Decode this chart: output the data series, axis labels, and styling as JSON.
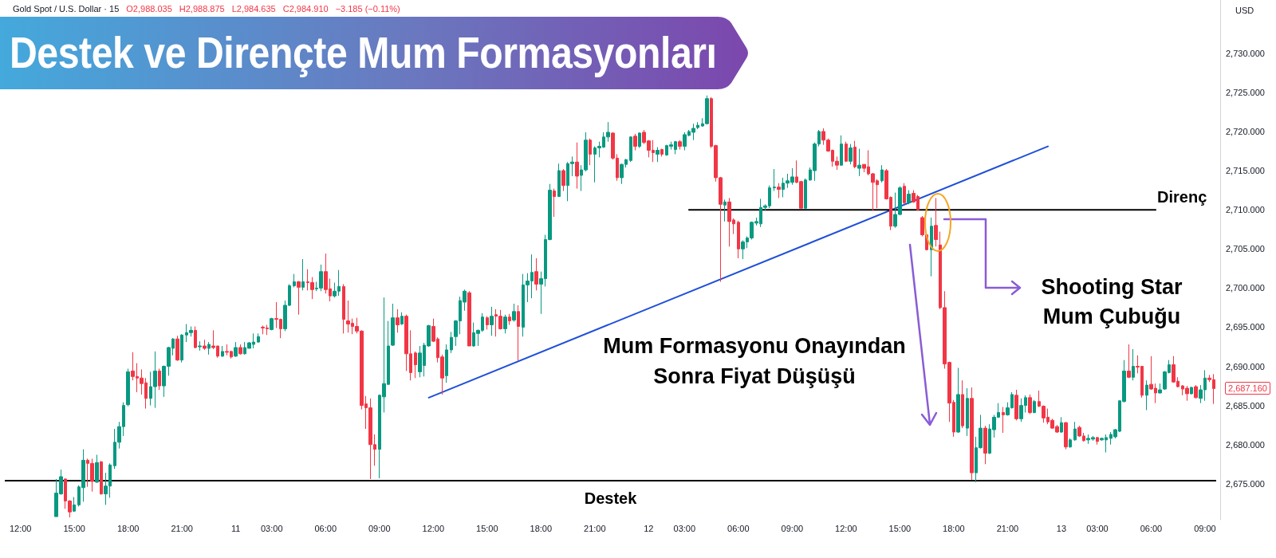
{
  "chart_data": {
    "type": "candlestick",
    "title": "Destek ve Dirençte Mum Formasyonları",
    "subtitle": "Gold Spot / U.S. Dollar · 15",
    "ylabel": "USD",
    "categories": [
      null,
      null,
      null,
      "12:00",
      null,
      null,
      null,
      null,
      null,
      null,
      null,
      null,
      null,
      null,
      null,
      "15:00",
      null,
      null,
      null,
      null,
      null,
      null,
      null,
      null,
      null,
      null,
      null,
      "18:00",
      null,
      null,
      null,
      null,
      null,
      null,
      null,
      null,
      null,
      null,
      null,
      "21:00",
      null,
      null,
      null,
      null,
      null,
      null,
      null,
      null,
      null,
      null,
      null,
      "11",
      null,
      null,
      null,
      null,
      null,
      null,
      null,
      "03:00",
      null,
      null,
      null,
      null,
      null,
      null,
      null,
      null,
      null,
      null,
      null,
      "06:00",
      null,
      null,
      null,
      null,
      null,
      null,
      null,
      null,
      null,
      null,
      null,
      "09:00",
      null,
      null,
      null,
      null,
      null,
      null,
      null,
      null,
      null,
      null,
      null,
      "12:00",
      null,
      null,
      null,
      null,
      null,
      null,
      null,
      null,
      null,
      null,
      null,
      "15:00",
      null,
      null,
      null,
      null,
      null,
      null,
      null,
      null,
      null,
      null,
      null,
      "18:00",
      null,
      null,
      null,
      null,
      null,
      null,
      null,
      null,
      null,
      null,
      null,
      "21:00",
      null,
      null,
      null,
      null,
      null,
      null,
      null,
      null,
      null,
      null,
      null,
      "12",
      null,
      null,
      null,
      null,
      null,
      null,
      null,
      "03:00",
      null,
      null,
      null,
      null,
      null,
      null,
      null,
      null,
      null,
      null,
      null,
      "06:00",
      null,
      null,
      null,
      null,
      null,
      null,
      null,
      null,
      null,
      null,
      null,
      "09:00",
      null,
      null,
      null,
      null,
      null,
      null,
      null,
      null,
      null,
      null,
      null,
      "12:00",
      null,
      null,
      null,
      null,
      null,
      null,
      null,
      null,
      null,
      null,
      null,
      "15:00",
      null,
      null,
      null,
      null,
      null,
      null,
      null,
      null,
      null,
      null,
      null,
      "18:00",
      null,
      null,
      null,
      null,
      null,
      null,
      null,
      null,
      null,
      null,
      null,
      "21:00",
      null,
      null,
      null,
      null,
      null,
      null,
      null,
      null,
      null,
      null,
      null,
      "13",
      null,
      null,
      null,
      null,
      null,
      null,
      null,
      "03:00",
      null,
      null,
      null,
      null,
      null,
      null,
      null,
      null,
      null,
      null,
      null,
      "06:00",
      null,
      null,
      null,
      null,
      null,
      null,
      null,
      null,
      null,
      null,
      null,
      "09:00",
      null,
      null
    ],
    "ohlc": [
      null,
      null,
      null,
      null,
      null,
      null,
      null,
      null,
      null,
      null,
      null,
      [
        2670.8,
        2675.6,
        2670.8,
        2673.8
      ],
      [
        2673.7,
        2676.8,
        2673.6,
        2675.9
      ],
      [
        2675.6,
        2675.7,
        2671.8,
        2672.8
      ],
      [
        2672.8,
        2672.9,
        2670.7,
        2671.4
      ],
      [
        2671.5,
        2673.3,
        2671.4,
        2672.3
      ],
      [
        2672.3,
        2674.8,
        2672.1,
        2674.6
      ],
      [
        2674.5,
        2679.4,
        2672.7,
        2678.0
      ],
      [
        2678.0,
        2678.2,
        2674.6,
        2677.6
      ],
      [
        2677.6,
        2678.2,
        2674.0,
        2675.3
      ],
      [
        2675.2,
        2678.7,
        2675.1,
        2677.7
      ],
      [
        2677.8,
        2677.9,
        2673.6,
        2673.7
      ],
      [
        2673.7,
        2676.4,
        2672.3,
        2674.7
      ],
      [
        2674.7,
        2677.6,
        2673.2,
        2677.4
      ],
      [
        2677.3,
        2682.0,
        2676.9,
        2680.3
      ],
      [
        2680.3,
        2682.9,
        2679.5,
        2682.3
      ],
      [
        2682.3,
        2685.4,
        2681.1,
        2685.0
      ],
      [
        2685.1,
        2689.7,
        2684.9,
        2689.3
      ],
      [
        2689.4,
        2691.8,
        2688.2,
        2688.7
      ],
      [
        2688.7,
        2690.4,
        2686.7,
        2688.5
      ],
      [
        2688.5,
        2689.6,
        2686.4,
        2687.8
      ],
      [
        2687.9,
        2688.5,
        2684.6,
        2685.9
      ],
      [
        2685.9,
        2689.3,
        2685.0,
        2687.4
      ],
      [
        2687.4,
        2691.9,
        2684.7,
        2689.4
      ],
      [
        2689.4,
        2689.7,
        2687.0,
        2687.5
      ],
      [
        2687.5,
        2690.1,
        2686.1,
        2690.0
      ],
      [
        2690.0,
        2692.5,
        2688.8,
        2692.4
      ],
      [
        2692.3,
        2693.6,
        2691.4,
        2693.5
      ],
      [
        2693.5,
        2693.9,
        2690.7,
        2690.8
      ],
      [
        2690.8,
        2694.1,
        2690.5,
        2694.0
      ],
      [
        2694.0,
        2695.4,
        2693.1,
        2694.3
      ],
      [
        2694.3,
        2695.1,
        2693.8,
        2694.6
      ],
      [
        2694.6,
        2695.1,
        2692.3,
        2692.4
      ],
      [
        2692.5,
        2693.2,
        2692.0,
        2692.6
      ],
      [
        2692.6,
        2693.4,
        2692.1,
        2692.3
      ],
      [
        2692.3,
        2693.1,
        2691.5,
        2692.8
      ],
      [
        2692.6,
        2694.6,
        2692.2,
        2692.4
      ],
      [
        2692.6,
        2692.6,
        2691.1,
        2691.3
      ],
      [
        2691.3,
        2692.6,
        2691.2,
        2691.9
      ],
      [
        2691.9,
        2692.8,
        2691.4,
        2691.8
      ],
      [
        2691.9,
        2692.0,
        2691.0,
        2691.2
      ],
      [
        2691.3,
        2693.1,
        2691.2,
        2692.4
      ],
      [
        2692.4,
        2692.8,
        2691.5,
        2691.6
      ],
      [
        2691.6,
        2693.1,
        2691.5,
        2692.4
      ],
      [
        2692.3,
        2693.1,
        2692.3,
        2693.0
      ],
      [
        2692.8,
        2694.2,
        2692.3,
        2693.1
      ],
      [
        2693.1,
        2694.2,
        2693.0,
        2693.8
      ],
      [
        2695.0,
        2695.2,
        2694.1,
        2694.9
      ],
      [
        2694.9,
        2695.3,
        2694.0,
        2694.8
      ],
      [
        2694.7,
        2696.2,
        2694.6,
        2696.1
      ],
      [
        2696.1,
        2698.2,
        2694.9,
        2696.0
      ],
      [
        2696.0,
        2696.1,
        2693.6,
        2694.8
      ],
      [
        2694.8,
        2698.4,
        2694.5,
        2697.8
      ],
      [
        2697.8,
        2700.5,
        2697.7,
        2700.3
      ],
      [
        2700.3,
        2701.8,
        2700.1,
        2700.8
      ],
      [
        2700.8,
        2700.9,
        2696.6,
        2700.1
      ],
      [
        2700.1,
        2703.7,
        2699.7,
        2700.8
      ],
      [
        2700.8,
        2702.4,
        2699.7,
        2700.7
      ],
      [
        2700.7,
        2701.4,
        2698.6,
        2699.8
      ],
      [
        2699.9,
        2700.8,
        2699.6,
        2700.0
      ],
      [
        2700.0,
        2703.0,
        2699.6,
        2702.1
      ],
      [
        2702.1,
        2704.4,
        2699.3,
        2699.8
      ],
      [
        2699.9,
        2701.2,
        2698.3,
        2699.0
      ],
      [
        2699.0,
        2700.7,
        2698.8,
        2699.6
      ],
      [
        2699.6,
        2702.3,
        2699.0,
        2700.2
      ],
      [
        2700.2,
        2700.5,
        2694.2,
        2696.0
      ],
      [
        2695.8,
        2698.4,
        2694.3,
        2695.4
      ],
      [
        2695.5,
        2696.1,
        2694.1,
        2695.1
      ],
      [
        2695.1,
        2696.2,
        2694.2,
        2694.5
      ],
      [
        2694.5,
        2694.6,
        2684.5,
        2685.0
      ],
      [
        2685.2,
        2686.2,
        2682.0,
        2684.7
      ],
      [
        2684.7,
        2685.9,
        2675.6,
        2680.0
      ],
      [
        2680.0,
        2681.3,
        2677.3,
        2679.4
      ],
      [
        2679.4,
        2686.4,
        2675.7,
        2686.3
      ],
      [
        2686.1,
        2698.8,
        2684.1,
        2687.8
      ],
      [
        2687.7,
        2695.8,
        2687.6,
        2692.6
      ],
      [
        2692.7,
        2698.0,
        2692.6,
        2696.2
      ],
      [
        2696.2,
        2697.3,
        2694.3,
        2695.3
      ],
      [
        2695.4,
        2696.9,
        2695.3,
        2696.4
      ],
      [
        2696.4,
        2696.6,
        2689.4,
        2691.6
      ],
      [
        2691.6,
        2694.6,
        2688.2,
        2689.2
      ],
      [
        2691.7,
        2691.9,
        2688.5,
        2690.2
      ],
      [
        2689.3,
        2692.6,
        2688.6,
        2691.7
      ],
      [
        2690.1,
        2693.0,
        2688.7,
        2692.7
      ],
      [
        2692.6,
        2695.3,
        2692.5,
        2695.2
      ],
      [
        2695.1,
        2696.1,
        2693.1,
        2693.2
      ],
      [
        2693.5,
        2693.7,
        2690.5,
        2691.1
      ],
      [
        2691.2,
        2691.5,
        2686.4,
        2688.5
      ],
      [
        2688.8,
        2692.8,
        2687.9,
        2692.1
      ],
      [
        2692.1,
        2694.4,
        2691.7,
        2693.7
      ],
      [
        2693.8,
        2695.9,
        2692.6,
        2695.8
      ],
      [
        2695.8,
        2698.9,
        2694.1,
        2698.4
      ],
      [
        2698.2,
        2699.8,
        2697.1,
        2699.6
      ],
      [
        2699.4,
        2699.6,
        2692.6,
        2692.6
      ],
      [
        2692.6,
        2695.6,
        2692.5,
        2694.3
      ],
      [
        2694.2,
        2694.7,
        2692.6,
        2694.6
      ],
      [
        2694.6,
        2696.8,
        2694.4,
        2696.3
      ],
      [
        2696.2,
        2696.4,
        2694.7,
        2695.3
      ],
      [
        2695.3,
        2697.6,
        2693.9,
        2696.4
      ],
      [
        2696.6,
        2697.3,
        2693.8,
        2696.4
      ],
      [
        2696.4,
        2697.2,
        2694.7,
        2694.8
      ],
      [
        2694.8,
        2696.6,
        2694.2,
        2696.3
      ],
      [
        2696.3,
        2696.7,
        2695.3,
        2695.8
      ],
      [
        2695.9,
        2698.0,
        2695.7,
        2697.0
      ],
      [
        2697.0,
        2697.8,
        2690.7,
        2695.1
      ],
      [
        2695.0,
        2701.8,
        2693.8,
        2700.4
      ],
      [
        2700.4,
        2701.9,
        2698.2,
        2700.9
      ],
      [
        2700.9,
        2704.3,
        2698.7,
        2702.0
      ],
      [
        2702.1,
        2703.8,
        2699.7,
        2700.5
      ],
      [
        2700.5,
        2702.1,
        2696.7,
        2701.2
      ],
      [
        2701.2,
        2706.8,
        2700.2,
        2706.2
      ],
      [
        2706.2,
        2713.3,
        2706.1,
        2712.5
      ],
      [
        2712.4,
        2712.7,
        2709.1,
        2711.7
      ],
      [
        2711.7,
        2715.9,
        2711.7,
        2715.0
      ],
      [
        2715.0,
        2715.2,
        2712.4,
        2713.1
      ],
      [
        2713.1,
        2716.1,
        2711.1,
        2715.9
      ],
      [
        2715.9,
        2716.8,
        2714.3,
        2716.1
      ],
      [
        2716.1,
        2718.6,
        2712.7,
        2714.3
      ],
      [
        2714.4,
        2715.7,
        2712.4,
        2715.1
      ],
      [
        2715.1,
        2719.9,
        2714.9,
        2718.9
      ],
      [
        2718.9,
        2719.1,
        2715.7,
        2717.1
      ],
      [
        2717.1,
        2718.1,
        2713.5,
        2717.9
      ],
      [
        2717.9,
        2718.7,
        2716.7,
        2718.1
      ],
      [
        2718.0,
        2719.9,
        2717.9,
        2719.3
      ],
      [
        2719.3,
        2721.2,
        2718.7,
        2719.9
      ],
      [
        2719.8,
        2719.9,
        2716.4,
        2716.6
      ],
      [
        2716.6,
        2717.1,
        2713.7,
        2714.1
      ],
      [
        2714.1,
        2715.9,
        2713.3,
        2715.8
      ],
      [
        2715.8,
        2716.5,
        2715.4,
        2716.4
      ],
      [
        2716.3,
        2719.4,
        2716.1,
        2719.3
      ],
      [
        2719.4,
        2719.7,
        2717.6,
        2718.1
      ],
      [
        2718.1,
        2719.9,
        2717.9,
        2719.8
      ],
      [
        2719.9,
        2720.2,
        2718.4,
        2718.6
      ],
      [
        2718.8,
        2718.9,
        2716.7,
        2717.6
      ],
      [
        2717.6,
        2718.9,
        2716.1,
        2717.3
      ],
      [
        2717.1,
        2718.0,
        2716.1,
        2717.6
      ],
      [
        2717.7,
        2717.8,
        2716.8,
        2717.1
      ],
      [
        2717.0,
        2718.3,
        2716.9,
        2718.2
      ],
      [
        2718.1,
        2718.7,
        2717.7,
        2718.3
      ],
      [
        2717.7,
        2718.8,
        2717.1,
        2718.7
      ],
      [
        2718.7,
        2718.9,
        2717.7,
        2718.1
      ],
      [
        2718.1,
        2719.9,
        2717.6,
        2719.6
      ],
      [
        2719.5,
        2720.2,
        2719.4,
        2720.0
      ],
      [
        2719.9,
        2721.0,
        2718.9,
        2720.4
      ],
      [
        2720.5,
        2721.2,
        2720.3,
        2720.8
      ],
      [
        2720.7,
        2721.7,
        2720.6,
        2721.0
      ],
      [
        2721.0,
        2724.6,
        2720.9,
        2724.2
      ],
      [
        2724.2,
        2724.4,
        2717.9,
        2718.1
      ],
      [
        2718.2,
        2718.3,
        2713.6,
        2714.1
      ],
      [
        2714.1,
        2714.2,
        2700.8,
        2710.7
      ],
      [
        2710.6,
        2711.3,
        2708.5,
        2711.0
      ],
      [
        2711.0,
        2711.5,
        2705.3,
        2708.5
      ],
      [
        2708.7,
        2708.9,
        2706.9,
        2708.2
      ],
      [
        2708.4,
        2708.6,
        2703.8,
        2705.0
      ],
      [
        2705.0,
        2706.1,
        2703.7,
        2705.9
      ],
      [
        2705.9,
        2706.6,
        2705.1,
        2706.4
      ],
      [
        2706.4,
        2708.5,
        2706.2,
        2708.4
      ],
      [
        2708.3,
        2709.0,
        2708.0,
        2708.5
      ],
      [
        2708.2,
        2711.4,
        2707.8,
        2710.3
      ],
      [
        2710.3,
        2710.7,
        2709.9,
        2710.5
      ],
      [
        2710.5,
        2713.1,
        2710.2,
        2712.8
      ],
      [
        2712.8,
        2715.2,
        2712.4,
        2712.9
      ],
      [
        2712.9,
        2713.4,
        2711.5,
        2712.6
      ],
      [
        2712.6,
        2714.1,
        2711.6,
        2713.4
      ],
      [
        2713.4,
        2714.6,
        2712.8,
        2713.7
      ],
      [
        2713.5,
        2715.3,
        2713.2,
        2714.2
      ],
      [
        2714.2,
        2716.3,
        2713.4,
        2713.5
      ],
      [
        2713.6,
        2713.7,
        2710.2,
        2710.2
      ],
      [
        2710.2,
        2714.0,
        2710.1,
        2713.8
      ],
      [
        2713.8,
        2715.4,
        2713.7,
        2715.1
      ],
      [
        2715.0,
        2718.6,
        2713.7,
        2718.4
      ],
      [
        2718.4,
        2720.2,
        2718.1,
        2720.0
      ],
      [
        2720.0,
        2720.4,
        2718.3,
        2718.9
      ],
      [
        2718.9,
        2719.1,
        2717.4,
        2717.5
      ],
      [
        2717.6,
        2717.7,
        2715.5,
        2716.2
      ],
      [
        2716.2,
        2716.8,
        2715.1,
        2715.7
      ],
      [
        2715.7,
        2719.5,
        2715.6,
        2718.4
      ],
      [
        2718.4,
        2718.7,
        2716.1,
        2716.2
      ],
      [
        2716.2,
        2718.4,
        2715.8,
        2717.9
      ],
      [
        2718.0,
        2718.8,
        2715.3,
        2715.5
      ],
      [
        2715.3,
        2717.8,
        2714.3,
        2715.7
      ],
      [
        2715.8,
        2715.8,
        2714.8,
        2715.3
      ],
      [
        2715.5,
        2717.6,
        2714.4,
        2714.6
      ],
      [
        2714.6,
        2714.7,
        2709.9,
        2713.5
      ],
      [
        2713.7,
        2713.9,
        2710.2,
        2713.2
      ],
      [
        2713.7,
        2715.7,
        2713.5,
        2715.1
      ],
      [
        2715.0,
        2715.2,
        2711.3,
        2711.4
      ],
      [
        2711.6,
        2711.7,
        2707.4,
        2707.9
      ],
      [
        2707.9,
        2712.2,
        2707.7,
        2709.4
      ],
      [
        2709.4,
        2713.0,
        2709.3,
        2712.8
      ],
      [
        2713.0,
        2713.4,
        2710.7,
        2710.9
      ],
      [
        2710.9,
        2712.5,
        2710.7,
        2712.0
      ],
      [
        2712.1,
        2712.5,
        2710.9,
        2711.0
      ],
      [
        2711.7,
        2711.9,
        2709.9,
        2710.0
      ],
      [
        2709.0,
        2709.2,
        2706.6,
        2706.8
      ],
      [
        2706.8,
        2707.0,
        2704.8,
        2704.9
      ],
      [
        2704.9,
        2709.0,
        2701.5,
        2707.9
      ],
      [
        2708.0,
        2711.5,
        2705.3,
        2706.2
      ],
      [
        2705.5,
        2707.2,
        2697.3,
        2697.5
      ],
      [
        2697.5,
        2699.6,
        2689.7,
        2690.3
      ],
      [
        2690.5,
        2690.6,
        2682.9,
        2685.3
      ],
      [
        2685.4,
        2685.7,
        2681.0,
        2681.6
      ],
      [
        2681.6,
        2689.8,
        2681.5,
        2686.4
      ],
      [
        2686.4,
        2688.2,
        2682.1,
        2682.4
      ],
      [
        2682.1,
        2687.2,
        2681.1,
        2685.9
      ],
      [
        2685.9,
        2687.3,
        2675.5,
        2676.4
      ],
      [
        2676.4,
        2681.0,
        2675.2,
        2679.6
      ],
      [
        2679.6,
        2683.8,
        2679.5,
        2682.1
      ],
      [
        2682.1,
        2682.4,
        2677.5,
        2678.9
      ],
      [
        2678.9,
        2682.6,
        2678.8,
        2682.0
      ],
      [
        2681.9,
        2683.8,
        2680.9,
        2683.5
      ],
      [
        2683.5,
        2685.3,
        2683.4,
        2684.1
      ],
      [
        2684.1,
        2684.8,
        2681.5,
        2683.8
      ],
      [
        2683.8,
        2685.4,
        2683.7,
        2684.7
      ],
      [
        2684.7,
        2686.7,
        2684.6,
        2686.4
      ],
      [
        2686.3,
        2687.0,
        2683.1,
        2683.3
      ],
      [
        2683.3,
        2685.9,
        2682.9,
        2685.0
      ],
      [
        2685.0,
        2686.3,
        2684.1,
        2686.0
      ],
      [
        2686.0,
        2686.4,
        2683.9,
        2684.1
      ],
      [
        2684.1,
        2685.7,
        2684.0,
        2685.5
      ],
      [
        2685.5,
        2686.9,
        2684.8,
        2684.9
      ],
      [
        2684.9,
        2685.0,
        2682.8,
        2683.4
      ],
      [
        2683.5,
        2684.6,
        2682.6,
        2682.9
      ],
      [
        2683.1,
        2683.3,
        2682.0,
        2682.1
      ],
      [
        2682.3,
        2682.5,
        2681.5,
        2681.6
      ],
      [
        2681.6,
        2683.5,
        2681.5,
        2682.8
      ],
      [
        2682.8,
        2682.9,
        2679.4,
        2679.7
      ],
      [
        2679.7,
        2680.8,
        2679.6,
        2680.6
      ],
      [
        2680.6,
        2682.9,
        2680.5,
        2682.0
      ],
      [
        2682.2,
        2682.4,
        2681.0,
        2681.1
      ],
      [
        2681.1,
        2681.5,
        2680.4,
        2680.5
      ],
      [
        2680.6,
        2681.3,
        2680.1,
        2680.8
      ],
      [
        2680.7,
        2681.1,
        2680.5,
        2680.9
      ],
      [
        2680.9,
        2681.0,
        2680.0,
        2680.4
      ],
      [
        2680.6,
        2680.9,
        2680.5,
        2680.8
      ],
      [
        2680.6,
        2681.3,
        2679.0,
        2680.9
      ],
      [
        2680.8,
        2681.6,
        2680.0,
        2681.3
      ],
      [
        2681.0,
        2682.0,
        2680.8,
        2681.9
      ],
      [
        2681.7,
        2685.6,
        2681.6,
        2685.6
      ],
      [
        2685.5,
        2690.8,
        2685.4,
        2689.4
      ],
      [
        2689.4,
        2692.8,
        2688.5,
        2688.6
      ],
      [
        2688.6,
        2692.2,
        2688.2,
        2690.0
      ],
      [
        2690.0,
        2691.4,
        2689.1,
        2689.9
      ],
      [
        2690.0,
        2690.0,
        2686.0,
        2686.3
      ],
      [
        2686.3,
        2688.2,
        2684.4,
        2687.6
      ],
      [
        2687.7,
        2691.3,
        2687.0,
        2687.1
      ],
      [
        2687.2,
        2687.8,
        2685.3,
        2686.6
      ],
      [
        2686.6,
        2687.8,
        2686.5,
        2687.0
      ],
      [
        2687.1,
        2689.4,
        2687.0,
        2689.3
      ],
      [
        2689.2,
        2690.8,
        2689.1,
        2690.2
      ],
      [
        2690.2,
        2691.3,
        2687.9,
        2688.0
      ],
      [
        2688.1,
        2688.6,
        2687.3,
        2687.4
      ],
      [
        2687.5,
        2687.6,
        2686.3,
        2687.1
      ],
      [
        2687.2,
        2687.5,
        2685.6,
        2686.5
      ],
      [
        2686.5,
        2687.4,
        2686.4,
        2687.3
      ],
      [
        2687.4,
        2687.6,
        2685.9,
        2686.0
      ],
      [
        2685.9,
        2687.6,
        2685.3,
        2687.0
      ],
      [
        2687.0,
        2689.5,
        2685.6,
        2688.5
      ],
      [
        2688.5,
        2688.9,
        2688.0,
        2688.3
      ],
      [
        2688.3,
        2689.0,
        2685.2,
        2687.16
      ]
    ],
    "series": [
      {
        "type": "line",
        "color": "#1e4fd8",
        "values": [
          null,
          null,
          null,
          null,
          null,
          null,
          null,
          null,
          null,
          null,
          null,
          null,
          null,
          null,
          null,
          null,
          null,
          null,
          null,
          null,
          null,
          null,
          null,
          null,
          null,
          null,
          null,
          null,
          null,
          null,
          null,
          null,
          null,
          null,
          null,
          null,
          null,
          null,
          null,
          null,
          null,
          null,
          null,
          null,
          null,
          null,
          null,
          null,
          null,
          null,
          null,
          null,
          null,
          null,
          null,
          null,
          null,
          null,
          null,
          null,
          null,
          null,
          null,
          null,
          null,
          null,
          null,
          null,
          null,
          null,
          null,
          null,
          null,
          null,
          null,
          null,
          null,
          null,
          null,
          null,
          null,
          null,
          null,
          null,
          null,
          null,
          null,
          null,
          null,
          null,
          null,
          null,
          null,
          null,
          2686.0,
          null,
          null,
          null,
          null,
          null,
          null,
          null,
          null,
          null,
          null,
          null,
          null,
          null,
          null,
          null,
          null,
          null,
          null,
          null,
          null,
          null,
          null,
          null,
          null,
          null,
          null,
          null,
          null,
          null,
          null,
          null,
          null,
          null,
          null,
          null,
          null,
          null,
          null,
          null,
          null,
          null,
          null,
          null,
          null,
          null,
          null,
          null,
          null,
          null,
          null,
          null,
          null,
          null,
          null,
          null,
          null,
          null,
          null,
          null,
          null,
          null,
          null,
          null,
          null,
          null,
          null,
          null,
          null,
          null,
          null,
          null,
          null,
          null,
          null,
          null,
          null,
          null,
          null,
          null,
          null,
          null,
          null,
          null,
          null,
          null,
          null,
          null,
          null,
          null,
          null,
          null,
          null,
          null,
          null,
          null,
          null,
          null,
          null,
          null,
          null,
          null,
          null,
          null,
          null,
          null,
          null,
          null,
          null,
          null,
          null,
          null,
          null,
          null,
          null,
          null,
          null,
          null,
          null,
          null,
          null,
          null,
          null,
          null,
          null,
          null,
          null,
          null,
          null,
          null,
          null,
          null,
          null,
          null,
          null,
          null,
          null,
          null,
          2718.1,
          null,
          null,
          null,
          null,
          null,
          null,
          null,
          null,
          null,
          null,
          null,
          null,
          null,
          null,
          null,
          null,
          null,
          null,
          null,
          null,
          null,
          null,
          null,
          null,
          null,
          null,
          null,
          null,
          null,
          null,
          null,
          null,
          null,
          null,
          null,
          null,
          null
        ]
      },
      {
        "type": "line",
        "name": "Direnç",
        "color": "#000000",
        "values": [
          null,
          null,
          null,
          null,
          null,
          null,
          null,
          null,
          null,
          null,
          null,
          null,
          null,
          null,
          null,
          null,
          null,
          null,
          null,
          null,
          null,
          null,
          null,
          null,
          null,
          null,
          null,
          null,
          null,
          null,
          null,
          null,
          null,
          null,
          null,
          null,
          null,
          null,
          null,
          null,
          null,
          null,
          null,
          null,
          null,
          null,
          null,
          null,
          null,
          null,
          null,
          null,
          null,
          null,
          null,
          null,
          null,
          null,
          null,
          null,
          null,
          null,
          null,
          null,
          null,
          null,
          null,
          null,
          null,
          null,
          null,
          null,
          null,
          null,
          null,
          null,
          null,
          null,
          null,
          null,
          null,
          null,
          null,
          null,
          null,
          null,
          null,
          null,
          null,
          null,
          null,
          null,
          null,
          null,
          null,
          null,
          null,
          null,
          null,
          null,
          null,
          null,
          null,
          null,
          null,
          null,
          null,
          null,
          null,
          null,
          null,
          null,
          null,
          null,
          null,
          null,
          null,
          null,
          null,
          null,
          null,
          null,
          null,
          null,
          null,
          null,
          null,
          null,
          null,
          null,
          null,
          null,
          null,
          null,
          null,
          null,
          null,
          null,
          null,
          null,
          null,
          null,
          null,
          null,
          null,
          null,
          null,
          null,
          null,
          null,
          null,
          null,
          2710,
          null,
          null,
          null,
          null,
          null,
          null,
          null,
          null,
          null,
          null,
          null,
          null,
          null,
          null,
          null,
          null,
          null,
          null,
          null,
          null,
          null,
          null,
          null,
          null,
          null,
          null,
          null,
          null,
          null,
          null,
          null,
          null,
          null,
          null,
          null,
          null,
          null,
          null,
          null,
          null,
          null,
          null,
          null,
          null,
          null,
          null,
          null,
          null,
          null,
          null,
          null,
          null,
          null,
          null,
          null,
          null,
          null,
          null,
          null,
          null,
          null,
          null,
          null,
          null,
          null,
          null,
          null,
          null,
          null,
          null,
          null,
          null,
          null,
          null,
          null,
          null,
          null,
          null,
          null,
          null,
          null,
          null,
          null,
          null,
          null,
          null,
          null,
          null,
          null,
          null,
          null,
          null,
          null,
          null,
          null,
          null,
          null,
          null,
          null,
          null,
          null,
          null,
          null,
          2710,
          null,
          null,
          null,
          null,
          null,
          null,
          null,
          null,
          null,
          null,
          null,
          null,
          null
        ]
      }
    ],
    "ref_lines": [
      {
        "axis": "y",
        "value": 2675.4,
        "label": "Destek",
        "color": "#000000"
      }
    ],
    "annotations": [
      "O2,988.035",
      "H2,988.875",
      "L2,984.635",
      "C2,984.910",
      "−3.185 (−0.11%)",
      "Shooting Star Mum Çubuğu",
      "Mum Formasyonu Onayından Sonra Fiyat Düşüşü",
      "2,687.160"
    ],
    "ylim": [
      2670.4,
      2736.8
    ],
    "yticks": [
      {
        "value": 2675,
        "label": "2,675.000"
      },
      {
        "value": 2680,
        "label": "2,680.000"
      },
      {
        "value": 2685,
        "label": "2,685.000"
      },
      {
        "value": 2690,
        "label": "2,690.000"
      },
      {
        "value": 2695,
        "label": "2,695.000"
      },
      {
        "value": 2700,
        "label": "2,700.000"
      },
      {
        "value": 2705,
        "label": "2,705.000"
      },
      {
        "value": 2710,
        "label": "2,710.000"
      },
      {
        "value": 2715,
        "label": "2,715.000"
      },
      {
        "value": 2720,
        "label": "2,720.000"
      },
      {
        "value": 2725,
        "label": "2,725.000"
      },
      {
        "value": 2730,
        "label": "2,730.000"
      }
    ],
    "marker": "none"
  }
}
